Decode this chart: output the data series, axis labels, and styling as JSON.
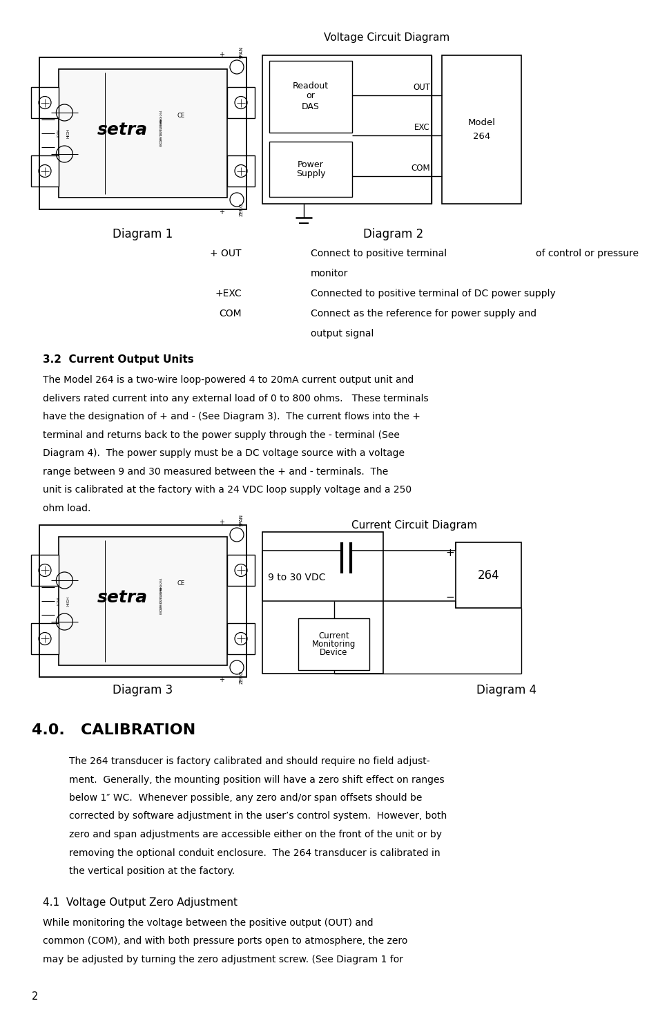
{
  "bg_color": "#ffffff",
  "page_width": 9.54,
  "page_height": 14.75,
  "title_voltage_diagram": "Voltage Circuit Diagram",
  "diagram1_label": "Diagram 1",
  "diagram2_label": "Diagram 2",
  "diagram3_label": "Diagram 3",
  "diagram4_label": "Diagram 4",
  "current_diagram_title": "Current Circuit Diagram",
  "section32_title": "3.2  Current Output Units",
  "section32_body_lines": [
    "The Model 264 is a two-wire loop-powered 4 to 20mA current output unit and",
    "delivers rated current into any external load of 0 to 800 ohms.   These terminals",
    "have the designation of + and - (See Diagram 3).  The current flows into the +",
    "terminal and returns back to the power supply through the - terminal (See",
    "Diagram 4).  The power supply must be a DC voltage source with a voltage",
    "range between 9 and 30 measured between the + and - terminals.  The",
    "unit is calibrated at the factory with a 24 VDC loop supply voltage and a 250",
    "ohm load."
  ],
  "section40_title": "4.0.   CALIBRATION",
  "section40_body_lines": [
    "The 264 transducer is factory calibrated and should require no field adjust-",
    "ment.  Generally, the mounting position will have a zero shift effect on ranges",
    "below 1″ WC.  Whenever possible, any zero and/or span offsets should be",
    "corrected by software adjustment in the user’s control system.  However, both",
    "zero and span adjustments are accessible either on the front of the unit or by",
    "removing the optional conduit enclosure.  The 264 transducer is calibrated in",
    "the vertical position at the factory."
  ],
  "section41_title": "4.1  Voltage Output Zero Adjustment",
  "section41_body_lines": [
    "While monitoring the voltage between the positive output (OUT) and",
    "common (COM), and with both pressure ports open to atmosphere, the zero",
    "may be adjusted by turning the zero adjustment screw. (See Diagram 1 for"
  ],
  "page_number": "2"
}
